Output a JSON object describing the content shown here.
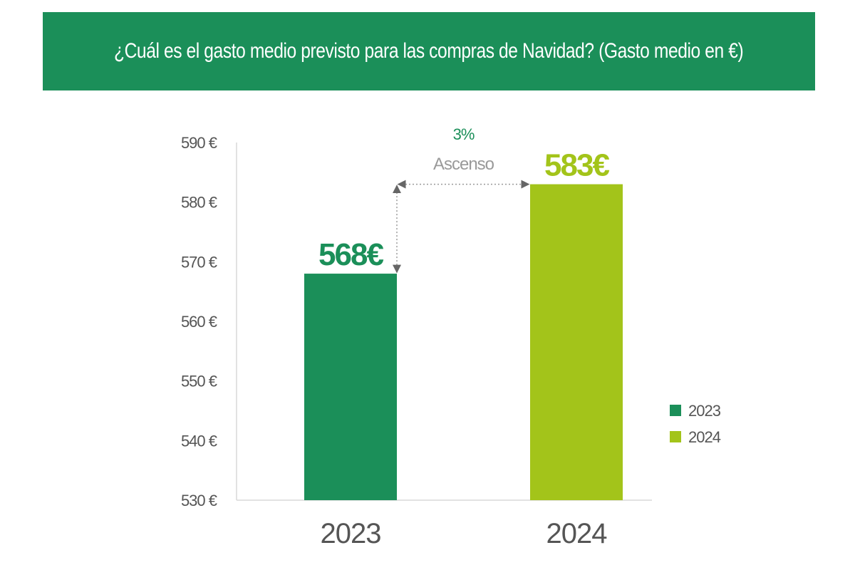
{
  "colors": {
    "banner": "#1b8f59",
    "series_2023": "#1b8f59",
    "series_2024": "#a3c41a",
    "axis_text": "#555555",
    "note_text": "#9a9a9a"
  },
  "chart_data": {
    "type": "bar",
    "title": "¿Cuál es el gasto medio previsto para las compras de Navidad? (Gasto medio en €)",
    "xlabel": "",
    "ylabel": "",
    "categories": [
      "2023",
      "2024"
    ],
    "values": [
      568,
      583
    ],
    "value_labels": [
      "568€",
      "583€"
    ],
    "ylim": [
      530,
      590
    ],
    "yticks": [
      530,
      540,
      550,
      560,
      570,
      580,
      590
    ],
    "ytick_labels": [
      "530 €",
      "540 €",
      "550 €",
      "560 €",
      "570 €",
      "580 €",
      "590 €"
    ],
    "grid": false,
    "legend": {
      "position": "right",
      "entries": [
        "2023",
        "2024"
      ]
    },
    "annotation": {
      "percent": "3%",
      "text": "Ascenso"
    }
  }
}
